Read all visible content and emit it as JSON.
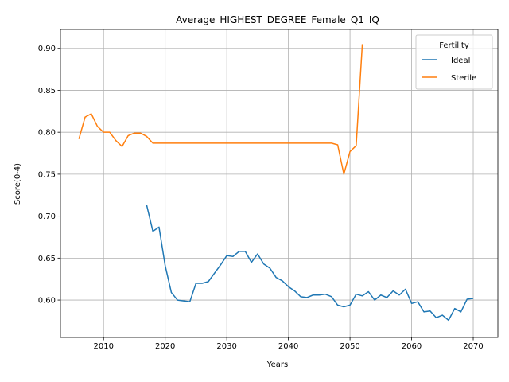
{
  "chart_data": {
    "type": "line",
    "title": "Average_HIGHEST_DEGREE_Female_Q1_IQ",
    "xlabel": "Years",
    "ylabel": "Score(0-4)",
    "xlim": [
      2003,
      2074
    ],
    "ylim": [
      0.5555,
      0.9225
    ],
    "xticks": [
      2010,
      2020,
      2030,
      2040,
      2050,
      2060,
      2070
    ],
    "yticks": [
      0.6,
      0.65,
      0.7,
      0.75,
      0.8,
      0.85,
      0.9
    ],
    "ytick_labels": [
      "0.60",
      "0.65",
      "0.70",
      "0.75",
      "0.80",
      "0.85",
      "0.90"
    ],
    "grid": true,
    "legend": {
      "title": "Fertility",
      "placement": "top-right"
    },
    "series": [
      {
        "name": "Ideal",
        "color": "#1f77b4",
        "x": [
          2017,
          2018,
          2019,
          2020,
          2021,
          2022,
          2023,
          2024,
          2025,
          2026,
          2027,
          2028,
          2029,
          2030,
          2031,
          2032,
          2033,
          2034,
          2035,
          2036,
          2037,
          2038,
          2039,
          2040,
          2041,
          2042,
          2043,
          2044,
          2045,
          2046,
          2047,
          2048,
          2049,
          2050,
          2051,
          2052,
          2053,
          2054,
          2055,
          2056,
          2057,
          2058,
          2059,
          2060,
          2061,
          2062,
          2063,
          2064,
          2065,
          2066,
          2067,
          2068,
          2069,
          2070
        ],
        "y": [
          0.713,
          0.682,
          0.687,
          0.641,
          0.609,
          0.6,
          0.599,
          0.598,
          0.62,
          0.62,
          0.622,
          0.632,
          0.642,
          0.653,
          0.652,
          0.658,
          0.658,
          0.645,
          0.655,
          0.643,
          0.638,
          0.627,
          0.623,
          0.616,
          0.611,
          0.604,
          0.603,
          0.606,
          0.606,
          0.607,
          0.604,
          0.594,
          0.592,
          0.594,
          0.607,
          0.605,
          0.61,
          0.6,
          0.606,
          0.603,
          0.611,
          0.606,
          0.613,
          0.596,
          0.598,
          0.586,
          0.587,
          0.579,
          0.582,
          0.576,
          0.59,
          0.586,
          0.601,
          0.602
        ]
      },
      {
        "name": "Sterile",
        "color": "#ff7f0e",
        "x": [
          2006,
          2007,
          2008,
          2009,
          2010,
          2011,
          2012,
          2013,
          2014,
          2015,
          2016,
          2017,
          2018,
          2019,
          2020,
          2021,
          2022,
          2023,
          2024,
          2025,
          2026,
          2027,
          2028,
          2029,
          2030,
          2031,
          2032,
          2033,
          2034,
          2035,
          2036,
          2037,
          2038,
          2039,
          2040,
          2041,
          2042,
          2043,
          2044,
          2045,
          2046,
          2047,
          2048,
          2049,
          2050,
          2051,
          2052
        ],
        "y": [
          0.792,
          0.818,
          0.822,
          0.807,
          0.8,
          0.8,
          0.79,
          0.783,
          0.796,
          0.799,
          0.799,
          0.795,
          0.787,
          0.787,
          0.787,
          0.787,
          0.787,
          0.787,
          0.787,
          0.787,
          0.787,
          0.787,
          0.787,
          0.787,
          0.787,
          0.787,
          0.787,
          0.787,
          0.787,
          0.787,
          0.787,
          0.787,
          0.787,
          0.787,
          0.787,
          0.787,
          0.787,
          0.787,
          0.787,
          0.787,
          0.787,
          0.787,
          0.785,
          0.75,
          0.777,
          0.784,
          0.905
        ]
      }
    ]
  }
}
